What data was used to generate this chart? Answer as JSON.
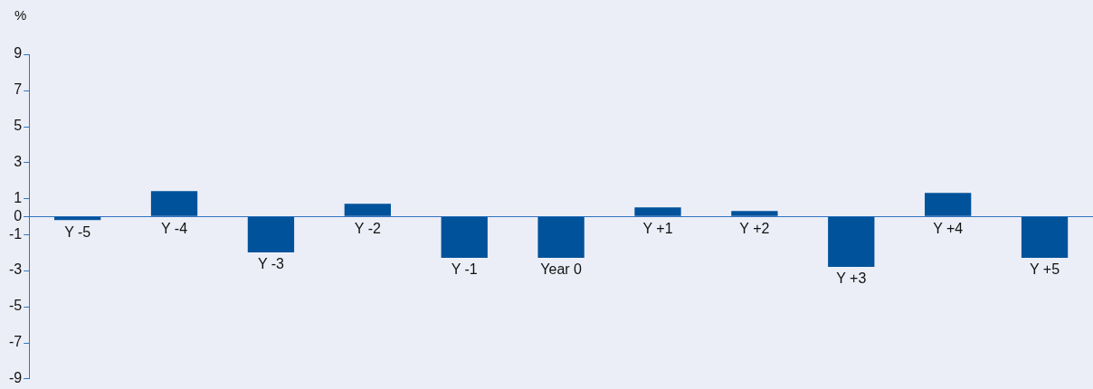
{
  "chart_data": {
    "type": "bar",
    "ylabel": "%",
    "categories": [
      "Y -5",
      "Y -4",
      "Y -3",
      "Y -2",
      "Y -1",
      "Year 0",
      "Y +1",
      "Y +2",
      "Y +3",
      "Y +4",
      "Y +5"
    ],
    "values": [
      -0.2,
      1.4,
      -2.0,
      0.7,
      -2.3,
      -2.3,
      0.5,
      0.3,
      -2.8,
      1.3,
      -2.3
    ],
    "color": "#00529b",
    "ylim": [
      -9,
      9
    ],
    "yticks": [
      -9,
      -7,
      -5,
      -3,
      -1,
      0,
      1,
      3,
      5,
      7,
      9
    ]
  }
}
